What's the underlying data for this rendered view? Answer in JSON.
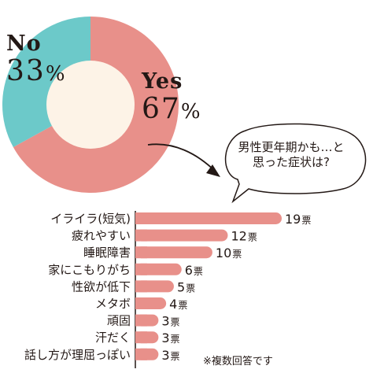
{
  "chart_data": [
    {
      "type": "pie",
      "slices": [
        {
          "label": "Yes",
          "value": 67,
          "pct_text": "67",
          "color": "#e8908a"
        },
        {
          "label": "No",
          "value": 33,
          "pct_text": "33",
          "color": "#6cc9c9"
        }
      ],
      "percent_sign": "%",
      "center_color": "#fdf3e7"
    },
    {
      "type": "bar",
      "orientation": "horizontal",
      "question": "男性更年期かも…と思った症状は?",
      "categories": [
        "イライラ(短気)",
        "疲れやすい",
        "睡眠障害",
        "家にこもりがち",
        "性欲が低下",
        "メタボ",
        "頑固",
        "汗だく",
        "話し方が理屈っぽい"
      ],
      "values": [
        19,
        12,
        10,
        6,
        5,
        4,
        3,
        3,
        3
      ],
      "unit": "票",
      "bar_color": "#e8908a",
      "note": "※複数回答です"
    }
  ]
}
